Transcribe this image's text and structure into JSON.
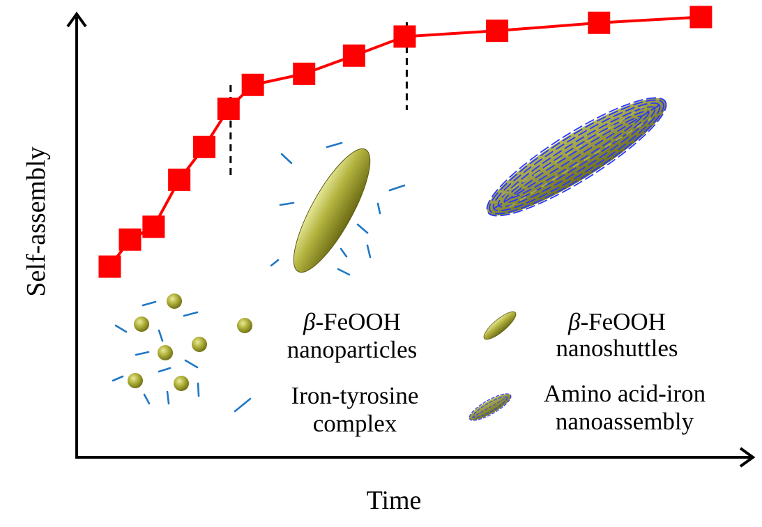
{
  "chart_data": {
    "type": "line",
    "title": "",
    "xlabel": "Time",
    "ylabel": "Self-assembly",
    "xlim": [
      0,
      100
    ],
    "ylim": [
      0,
      100
    ],
    "grid": false,
    "series": [
      {
        "color": "#ff0000",
        "marker": "square",
        "x": [
          4.9,
          7.9,
          11.4,
          15.2,
          18.9,
          22.5,
          26.1,
          33.7,
          41.1,
          48.6,
          62.3,
          77.4,
          92.5
        ],
        "y": [
          43.0,
          49.1,
          52.0,
          62.6,
          70.0,
          78.6,
          84.0,
          86.5,
          90.6,
          94.9,
          96.2,
          98.0,
          99.3
        ]
      }
    ],
    "stage_boundaries_x": [
      22.5,
      48.6
    ],
    "legend": {
      "placement": "bottom",
      "entries": [
        {
          "line1": "β-FeOOH",
          "line2": "nanoparticles",
          "icon": "nanoparticle-sphere"
        },
        {
          "line1": "β-FeOOH",
          "line2": "nanoshuttles",
          "icon": "nanoshuttle-ellipsoid"
        },
        {
          "line1": "Iron-tyrosine",
          "line2": "complex",
          "icon": "complex-dash"
        },
        {
          "line1": "Amino acid-iron",
          "line2": "nanoassembly",
          "icon": "nanoassembly-ellipsoid"
        }
      ]
    }
  },
  "colors": {
    "line": "#ff0000",
    "marker": "#ff0000",
    "nanoparticle": "#a8a832",
    "complex": "#1f77c4",
    "nanoassembly_wire": "#2838ff"
  }
}
